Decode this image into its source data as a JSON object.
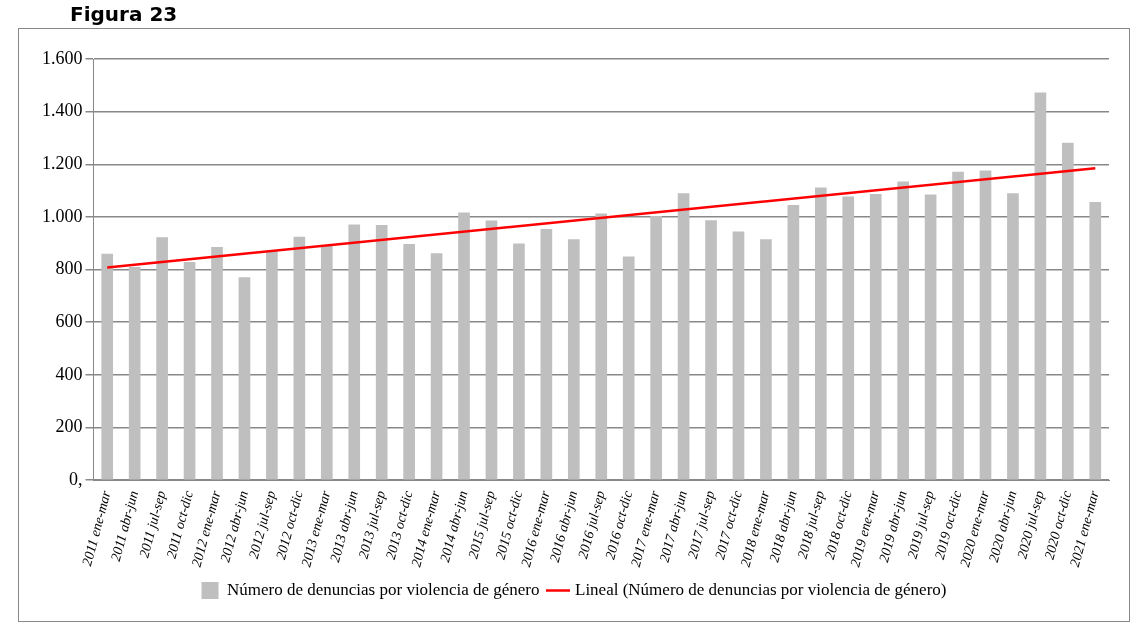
{
  "chart_data": {
    "type": "bar",
    "title": "Figura 23",
    "categories": [
      "2011 ene-mar",
      "2011 abr-jun",
      "2011 jul-sep",
      "2011 oct-dic",
      "2012 ene-mar",
      "2012 abr-jun",
      "2012 jul-sep",
      "2012 oct-dic",
      "2013 ene-mar",
      "2013 abr-jun",
      "2013 jul-sep",
      "2013 oct-dic",
      "2014 ene-mar",
      "2014 abr-jun",
      "2015 jul-sep",
      "2015 oct-dic",
      "2016 ene-mar",
      "2016 abr-jun",
      "2016 jul-sep",
      "2016 oct-dic",
      "2017 ene-mar",
      "2017 abr-jun",
      "2017 jul-sep",
      "2017 oct-dic",
      "2018 ene-mar",
      "2018 abr-jun",
      "2018 jul-sep",
      "2018 oct-dic",
      "2019 ene-mar",
      "2019 abr-jun",
      "2019 jul-sep",
      "2019 oct-dic",
      "2020 ene-mar",
      "2020 abr-jun",
      "2020 jul-sep",
      "2020 oct-dic",
      "2021 ene-mar"
    ],
    "series": [
      {
        "name": "Número de denuncias por violencia de género",
        "color": "#bfbfbf",
        "values": [
          860,
          810,
          923,
          829,
          886,
          771,
          873,
          925,
          892,
          971,
          969,
          897,
          862,
          1017,
          986,
          899,
          954,
          915,
          1013,
          850,
          1004,
          1090,
          987,
          945,
          915,
          1045,
          1112,
          1078,
          1087,
          1135,
          1085,
          1172,
          1176,
          1090,
          1473,
          1282,
          1057
        ]
      },
      {
        "name": "Lineal (Número de denuncias por violencia de género)",
        "type": "line",
        "color": "#ff0000",
        "values": [
          808,
          null,
          null,
          null,
          null,
          null,
          null,
          null,
          null,
          null,
          null,
          null,
          null,
          null,
          null,
          null,
          null,
          null,
          null,
          null,
          null,
          null,
          null,
          null,
          null,
          null,
          null,
          null,
          null,
          null,
          null,
          null,
          null,
          null,
          null,
          null,
          1185
        ]
      }
    ],
    "ylim": [
      0,
      1600
    ],
    "yticks": [
      {
        "value": 0,
        "label": "0,"
      },
      {
        "value": 200,
        "label": "200"
      },
      {
        "value": 400,
        "label": "400"
      },
      {
        "value": 600,
        "label": "600"
      },
      {
        "value": 800,
        "label": "800"
      },
      {
        "value": 1000,
        "label": "1.000"
      },
      {
        "value": 1200,
        "label": "1.200"
      },
      {
        "value": 1400,
        "label": "1.400"
      },
      {
        "value": 1600,
        "label": "1.600"
      }
    ],
    "grid": "y",
    "legend": "bottom",
    "marker": "none",
    "line_style": "solid"
  }
}
